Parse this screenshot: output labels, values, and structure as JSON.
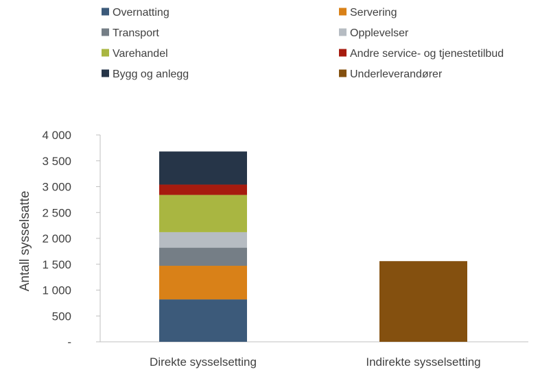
{
  "chart_data": {
    "type": "bar",
    "stacked": true,
    "categories": [
      "Direkte sysselsetting",
      "Indirekte sysselsetting"
    ],
    "ylabel": "Antall sysselsatte",
    "xlabel": "",
    "ylim": [
      0,
      4000
    ],
    "yticks": [
      0,
      500,
      1000,
      1500,
      2000,
      2500,
      3000,
      3500,
      4000
    ],
    "ytick_labels": [
      "-",
      "500",
      "1 000",
      "1 500",
      "2 000",
      "2 500",
      "3 000",
      "3 500",
      "4 000"
    ],
    "legend_position": "top",
    "grid": false,
    "series": [
      {
        "name": "Overnatting",
        "color": "#3c5a7a",
        "values": [
          820,
          0
        ]
      },
      {
        "name": "Servering",
        "color": "#d98118",
        "values": [
          650,
          0
        ]
      },
      {
        "name": "Transport",
        "color": "#757e86",
        "values": [
          350,
          0
        ]
      },
      {
        "name": "Opplevelser",
        "color": "#b6bcc2",
        "values": [
          300,
          0
        ]
      },
      {
        "name": "Varehandel",
        "color": "#a9b641",
        "values": [
          720,
          0
        ]
      },
      {
        "name": "Andre service- og tjenestetilbud",
        "color": "#a61b0f",
        "values": [
          200,
          0
        ]
      },
      {
        "name": "Bygg og anlegg",
        "color": "#263548",
        "values": [
          640,
          0
        ]
      },
      {
        "name": "Underleverandører",
        "color": "#84500f",
        "values": [
          0,
          1560
        ]
      }
    ]
  }
}
